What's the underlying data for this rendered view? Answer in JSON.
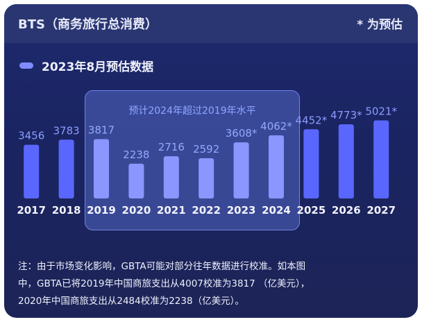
{
  "header": {
    "title": "BTS（商务旅行总消费）",
    "note": "* 为预估"
  },
  "legend": {
    "label": "2023年8月预估数据"
  },
  "highlight": {
    "label": "预计2024年超过2019年水平"
  },
  "footnote": {
    "line1": "注：由于市场变化影响，GBTA可能对部分往年数据进行校准。如本图",
    "line2": "中，GBTA已将2019年中国商旅支出从4007校准为3817 （亿美元），",
    "line3": "2020年中国商旅支出从2484校准为2238（亿美元）。"
  },
  "colors": {
    "bar": "#5a67ff",
    "bar_highlighted": "#8b96ff",
    "value_label": "#8c9cff",
    "value_label_highlighted": "#93a8ff",
    "background": "#1e2a6e"
  },
  "chart_data": {
    "type": "bar",
    "categories": [
      "2017",
      "2018",
      "2019",
      "2020",
      "2021",
      "2022",
      "2023",
      "2024",
      "2025",
      "2026",
      "2027"
    ],
    "values": [
      3456,
      3783,
      3817,
      2238,
      2716,
      2592,
      3608,
      4062,
      4452,
      4773,
      5021
    ],
    "value_labels": [
      "3456",
      "3783",
      "3817",
      "2238",
      "2716",
      "2592",
      "3608*",
      "4062*",
      "4452*",
      "4773*",
      "5021*"
    ],
    "estimated": [
      false,
      false,
      false,
      false,
      false,
      false,
      true,
      true,
      true,
      true,
      true
    ],
    "highlighted_range": [
      "2019",
      "2024"
    ],
    "title": "BTS（商务旅行总消费）",
    "xlabel": "",
    "ylabel": "",
    "legend": [
      "2023年8月预估数据"
    ],
    "grid": false
  }
}
